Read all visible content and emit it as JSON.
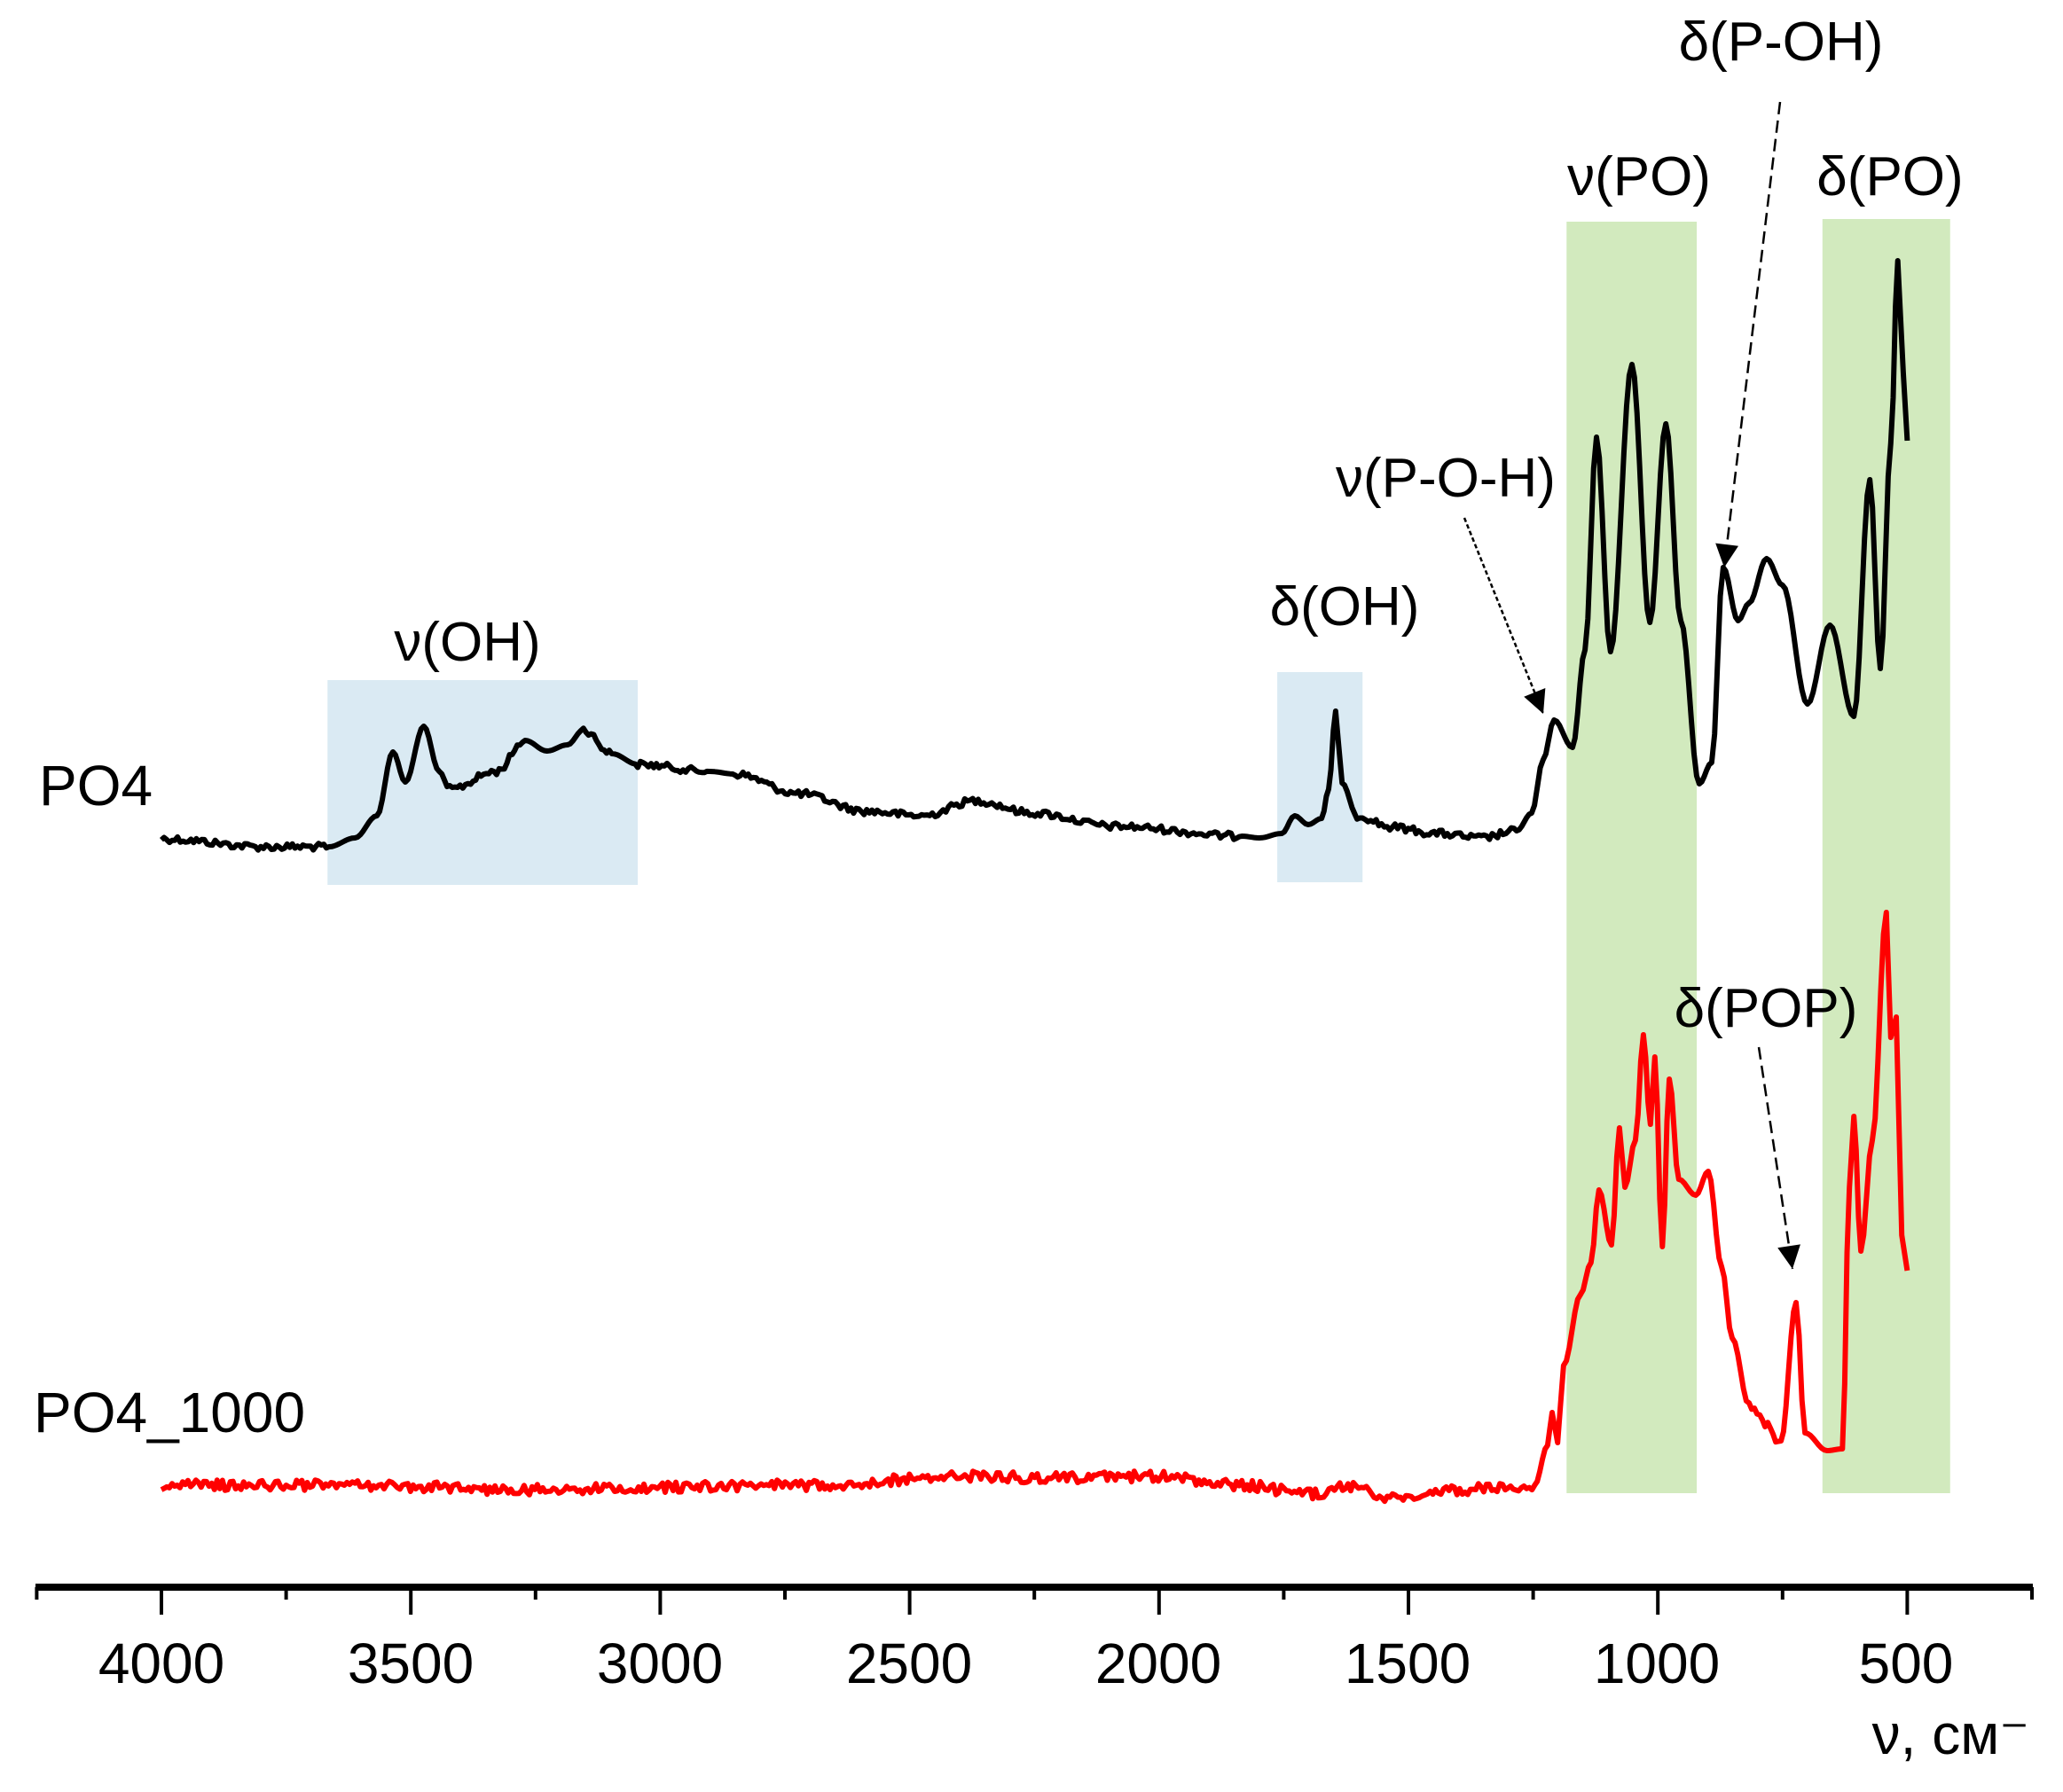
{
  "chart_data": {
    "type": "line",
    "title": "",
    "xlabel": "ν, см⁻",
    "ylabel": "",
    "xlim": [
      4250,
      250
    ],
    "x_reversed": true,
    "y_axis_visible": false,
    "grid": false,
    "x_ticks_major": [
      4000,
      3500,
      3000,
      2500,
      2000,
      1500,
      1000,
      500
    ],
    "x_ticks_minor": [
      4250,
      3750,
      3250,
      2750,
      2250,
      1750,
      1250,
      750,
      250
    ],
    "series": [
      {
        "name": "PO4",
        "color": "#000000",
        "x": [
          4000,
          3790,
          3664,
          3612,
          3568,
          3536,
          3511,
          3474,
          3443,
          3422,
          3328,
          3271,
          3227,
          3186,
          3154,
          3097,
          3045,
          2901,
          2850,
          2723,
          2586,
          2476,
          2368,
          2254,
          2087,
          1834,
          1799,
          1754,
          1728,
          1701,
          1674,
          1660,
          1646,
          1633,
          1603,
          1532,
          1443,
          1354,
          1283,
          1253,
          1230,
          1208,
          1171,
          1146,
          1123,
          1095,
          1052,
          1016,
          984,
          954,
          917,
          892,
          869,
          839,
          817,
          782,
          750,
          700,
          655,
          607,
          575,
          554,
          533,
          519,
          508,
          500
        ],
        "y": [
          8.41,
          8.32,
          8.32,
          8.42,
          8.67,
          9.39,
          9.05,
          9.68,
          9.17,
          8.97,
          9.17,
          9.52,
          9.4,
          9.47,
          9.64,
          9.37,
          9.25,
          9.17,
          9.14,
          8.92,
          8.72,
          8.67,
          8.84,
          8.7,
          8.55,
          8.44,
          8.42,
          8.47,
          8.67,
          8.57,
          8.64,
          8.97,
          9.85,
          9.04,
          8.67,
          8.54,
          8.47,
          8.42,
          8.5,
          8.7,
          9.3,
          9.75,
          9.44,
          10.54,
          12.94,
          10.52,
          13.76,
          10.85,
          13.09,
          10.87,
          9.03,
          9.27,
          11.47,
          10.87,
          11.07,
          11.57,
          11.27,
          9.93,
          10.82,
          9.79,
          12.46,
          10.33,
          12.87,
          14.93,
          13.67,
          12.9
        ],
        "noise": 0.04
      },
      {
        "name": "PO4_1000",
        "color": "#ff0000",
        "x": [
          4000,
          3612,
          3257,
          2723,
          2368,
          2190,
          2012,
          1834,
          1692,
          1621,
          1532,
          1408,
          1247,
          1221,
          1212,
          1201,
          1189,
          1155,
          1134,
          1118,
          1093,
          1077,
          1066,
          1045,
          1029,
          1015,
          1006,
          991,
          977,
          958,
          924,
          899,
          872,
          851,
          817,
          753,
          723,
          705,
          661,
          630,
          616,
          607,
          593,
          570,
          542,
          533,
          522,
          511,
          500
        ],
        "y": [
          1.12,
          1.12,
          1.07,
          1.12,
          1.22,
          1.2,
          1.22,
          1.12,
          1.02,
          1.1,
          0.97,
          1.07,
          1.12,
          1.57,
          1.94,
          1.6,
          2.47,
          3.27,
          3.63,
          4.45,
          3.83,
          5.15,
          4.48,
          5.01,
          6.2,
          5.19,
          5.95,
          3.81,
          5.7,
          4.57,
          4.39,
          4.66,
          3.58,
          2.78,
          2.02,
          1.62,
          3.18,
          1.71,
          1.51,
          1.53,
          4.48,
          5.28,
          3.76,
          5.01,
          7.58,
          6.17,
          6.4,
          3.94,
          3.54
        ],
        "noise": 0.06
      }
    ],
    "regions": [
      {
        "name": "nu-OH-region",
        "x_from": 3667,
        "x_to": 3045,
        "y_from": 7.89,
        "y_to": 10.2,
        "color": "#daeaf3"
      },
      {
        "name": "delta-OH-region",
        "x_from": 1763,
        "x_to": 1592,
        "y_from": 7.92,
        "y_to": 10.29,
        "color": "#daeaf3"
      },
      {
        "name": "nu-PO-region",
        "x_from": 1183,
        "x_to": 922,
        "y_from": 1.03,
        "y_to": 15.37,
        "color": "#d2eabe"
      },
      {
        "name": "delta-PO-region",
        "x_from": 670,
        "x_to": 414,
        "y_from": 1.03,
        "y_to": 15.4,
        "color": "#d2eabe"
      }
    ],
    "annotations": [
      {
        "text": "ν(OH)",
        "x": 3380,
        "y": 10.42
      },
      {
        "text": "δ(OH)",
        "x": 1690,
        "y": 10.82
      },
      {
        "text": "ν(P-O-H)",
        "x": 1370,
        "y": 12.27,
        "arrow_to": [
          1217,
          9.82
        ]
      },
      {
        "text": "ν(PO)",
        "x": 1055,
        "y": 15.67
      },
      {
        "text": "δ(P-OH)",
        "x": 850,
        "y": 17.19,
        "arrow_to": [
          873,
          11.47
        ]
      },
      {
        "text": "δ(PO)",
        "x": 525,
        "y": 15.67
      },
      {
        "text": "δ(POP)",
        "x": 750,
        "y": 6.29,
        "arrow_to": [
          707,
          3.56
        ]
      }
    ],
    "legend": {
      "position": "inline-left",
      "entries": [
        "PO4",
        "PO4_1000"
      ]
    }
  },
  "labels": {
    "series_po4": "PO4",
    "series_po4_1000": "PO4_1000",
    "nu_oh": "ν(OH)",
    "delta_oh": "δ(OH)",
    "nu_poh": "ν(P-O-H)",
    "nu_po": "ν(PO)",
    "delta_p_oh": "δ(P-OH)",
    "delta_po": "δ(PO)",
    "delta_pop": "δ(POP)",
    "x_axis": "ν, см⁻"
  },
  "ticks": [
    "4000",
    "3500",
    "3000",
    "2500",
    "2000",
    "1500",
    "1000",
    "500"
  ],
  "colors": {
    "po4_line": "#000000",
    "po4_1000_line": "#ff0000",
    "blue_region": "#daeaf3",
    "green_region": "#d2eabe",
    "axis": "#000000"
  }
}
